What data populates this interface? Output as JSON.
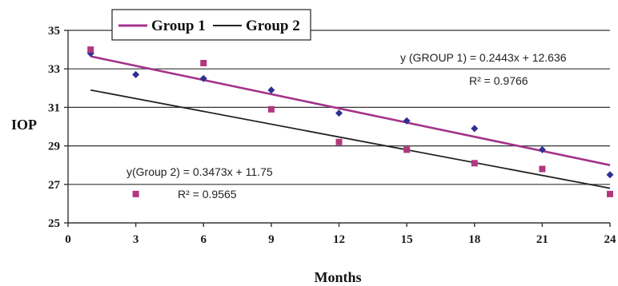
{
  "chart_data": {
    "type": "scatter",
    "title": "",
    "xlabel": "Months",
    "ylabel": "IOP",
    "xlim": [
      0,
      24
    ],
    "ylim": [
      25,
      35
    ],
    "x_ticks": [
      0,
      3,
      6,
      9,
      12,
      15,
      18,
      21,
      24
    ],
    "y_ticks": [
      25,
      27,
      29,
      31,
      33,
      35
    ],
    "grid": "horizontal",
    "legend": {
      "position": "top-left",
      "entries": [
        "Group 1",
        "Group 2"
      ]
    },
    "series": [
      {
        "name": "Group 1",
        "marker": "diamond",
        "marker_color": "#2e3192",
        "line_color": "#a3338a",
        "points": [
          {
            "x": 1,
            "y": 33.8
          },
          {
            "x": 3,
            "y": 32.7
          },
          {
            "x": 6,
            "y": 32.5
          },
          {
            "x": 9,
            "y": 31.9
          },
          {
            "x": 12,
            "y": 30.7
          },
          {
            "x": 15,
            "y": 30.3
          },
          {
            "x": 18,
            "y": 29.9
          },
          {
            "x": 21,
            "y": 28.8
          },
          {
            "x": 24,
            "y": 27.5
          }
        ],
        "trendline": {
          "x0": 1,
          "y0": 33.65,
          "x1": 24,
          "y1": 28.0
        },
        "equation": "y (GROUP 1) = 0.2443x + 12.636",
        "r_squared": "R² = 0.9766"
      },
      {
        "name": "Group 2",
        "marker": "square",
        "marker_color": "#b0387f",
        "line_color": "#222222",
        "points": [
          {
            "x": 1,
            "y": 34.0
          },
          {
            "x": 3,
            "y": 26.5
          },
          {
            "x": 6,
            "y": 33.3
          },
          {
            "x": 9,
            "y": 30.9
          },
          {
            "x": 12,
            "y": 29.2
          },
          {
            "x": 15,
            "y": 28.8
          },
          {
            "x": 18,
            "y": 28.1
          },
          {
            "x": 21,
            "y": 27.8
          },
          {
            "x": 24,
            "y": 26.5
          }
        ],
        "trendline": {
          "x0": 1,
          "y0": 31.9,
          "x1": 24,
          "y1": 26.8
        },
        "equation": "y(Group 2) = 0.3473x + 11.75",
        "r_squared": "R² = 0.9565"
      }
    ]
  }
}
